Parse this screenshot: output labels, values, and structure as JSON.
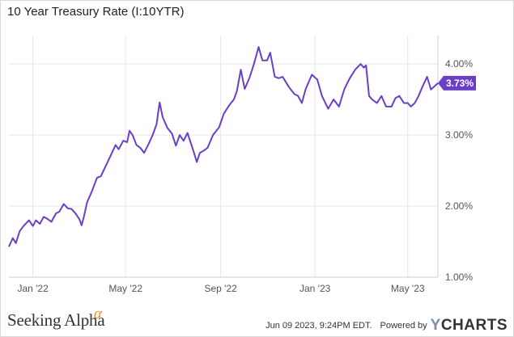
{
  "title": "10 Year Treasury Rate (I:10YTR)",
  "footer": {
    "source": "Seeking Alpha",
    "source_mark": "α",
    "timestamp": "Jun 09 2023, 9:24PM EDT.",
    "powered_by": "Powered by",
    "logo_y": "Y",
    "logo_rest": "CHARTS"
  },
  "colors": {
    "series": "#6a3fc8",
    "grid": "#e6e6e6",
    "axis_text": "#555555",
    "badge_bg": "#6a3fc8",
    "badge_text": "#ffffff"
  },
  "chart_data": {
    "type": "line",
    "title": "10 Year Treasury Rate (I:10YTR)",
    "xlabel": "",
    "ylabel": "",
    "xlim": [
      "2021-12-01",
      "2023-06-09"
    ],
    "ylim": [
      1.0,
      4.4
    ],
    "grid": true,
    "x_ticks": [
      {
        "date": "2022-01-01",
        "label": "Jan '22"
      },
      {
        "date": "2022-05-01",
        "label": "May '22"
      },
      {
        "date": "2022-09-01",
        "label": "Sep '22"
      },
      {
        "date": "2023-01-01",
        "label": "Jan '23"
      },
      {
        "date": "2023-05-01",
        "label": "May '23"
      }
    ],
    "y_ticks": [
      {
        "value": 1.0,
        "label": "1.00%"
      },
      {
        "value": 2.0,
        "label": "2.00%"
      },
      {
        "value": 3.0,
        "label": "3.00%"
      },
      {
        "value": 4.0,
        "label": "4.00%"
      }
    ],
    "last_value_label": "3.73%",
    "series": [
      {
        "points": [
          [
            "2021-12-01",
            1.43
          ],
          [
            "2021-12-06",
            1.55
          ],
          [
            "2021-12-10",
            1.48
          ],
          [
            "2021-12-15",
            1.65
          ],
          [
            "2021-12-20",
            1.72
          ],
          [
            "2021-12-27",
            1.8
          ],
          [
            "2022-01-01",
            1.72
          ],
          [
            "2022-01-05",
            1.8
          ],
          [
            "2022-01-10",
            1.75
          ],
          [
            "2022-01-15",
            1.85
          ],
          [
            "2022-01-20",
            1.82
          ],
          [
            "2022-01-25",
            1.78
          ],
          [
            "2022-01-31",
            1.9
          ],
          [
            "2022-02-04",
            1.92
          ],
          [
            "2022-02-10",
            2.03
          ],
          [
            "2022-02-15",
            1.97
          ],
          [
            "2022-02-20",
            1.96
          ],
          [
            "2022-02-25",
            1.9
          ],
          [
            "2022-03-02",
            1.82
          ],
          [
            "2022-03-05",
            1.73
          ],
          [
            "2022-03-08",
            1.85
          ],
          [
            "2022-03-12",
            2.05
          ],
          [
            "2022-03-18",
            2.2
          ],
          [
            "2022-03-25",
            2.4
          ],
          [
            "2022-03-30",
            2.42
          ],
          [
            "2022-04-05",
            2.56
          ],
          [
            "2022-04-12",
            2.72
          ],
          [
            "2022-04-18",
            2.86
          ],
          [
            "2022-04-22",
            2.8
          ],
          [
            "2022-04-28",
            2.92
          ],
          [
            "2022-05-03",
            2.9
          ],
          [
            "2022-05-06",
            3.06
          ],
          [
            "2022-05-10",
            3.0
          ],
          [
            "2022-05-15",
            2.86
          ],
          [
            "2022-05-20",
            2.82
          ],
          [
            "2022-05-25",
            2.75
          ],
          [
            "2022-05-31",
            2.88
          ],
          [
            "2022-06-05",
            3.0
          ],
          [
            "2022-06-10",
            3.15
          ],
          [
            "2022-06-14",
            3.46
          ],
          [
            "2022-06-18",
            3.25
          ],
          [
            "2022-06-24",
            3.1
          ],
          [
            "2022-06-30",
            3.02
          ],
          [
            "2022-07-05",
            2.85
          ],
          [
            "2022-07-10",
            3.0
          ],
          [
            "2022-07-15",
            2.92
          ],
          [
            "2022-07-20",
            3.03
          ],
          [
            "2022-07-27",
            2.8
          ],
          [
            "2022-08-01",
            2.62
          ],
          [
            "2022-08-05",
            2.75
          ],
          [
            "2022-08-10",
            2.78
          ],
          [
            "2022-08-15",
            2.82
          ],
          [
            "2022-08-22",
            3.0
          ],
          [
            "2022-08-30",
            3.11
          ],
          [
            "2022-09-05",
            3.3
          ],
          [
            "2022-09-12",
            3.42
          ],
          [
            "2022-09-18",
            3.5
          ],
          [
            "2022-09-22",
            3.62
          ],
          [
            "2022-09-27",
            3.92
          ],
          [
            "2022-10-02",
            3.65
          ],
          [
            "2022-10-08",
            3.8
          ],
          [
            "2022-10-14",
            4.0
          ],
          [
            "2022-10-20",
            4.24
          ],
          [
            "2022-10-25",
            4.05
          ],
          [
            "2022-10-31",
            4.05
          ],
          [
            "2022-11-04",
            4.16
          ],
          [
            "2022-11-10",
            3.82
          ],
          [
            "2022-11-15",
            3.8
          ],
          [
            "2022-11-20",
            3.82
          ],
          [
            "2022-11-28",
            3.68
          ],
          [
            "2022-12-05",
            3.58
          ],
          [
            "2022-12-10",
            3.55
          ],
          [
            "2022-12-15",
            3.45
          ],
          [
            "2022-12-20",
            3.65
          ],
          [
            "2022-12-28",
            3.85
          ],
          [
            "2023-01-04",
            3.78
          ],
          [
            "2023-01-10",
            3.55
          ],
          [
            "2023-01-18",
            3.37
          ],
          [
            "2023-01-25",
            3.5
          ],
          [
            "2023-02-01",
            3.4
          ],
          [
            "2023-02-08",
            3.65
          ],
          [
            "2023-02-15",
            3.8
          ],
          [
            "2023-02-22",
            3.92
          ],
          [
            "2023-03-01",
            4.0
          ],
          [
            "2023-03-05",
            3.95
          ],
          [
            "2023-03-08",
            3.98
          ],
          [
            "2023-03-12",
            3.55
          ],
          [
            "2023-03-16",
            3.5
          ],
          [
            "2023-03-22",
            3.45
          ],
          [
            "2023-03-28",
            3.55
          ],
          [
            "2023-04-03",
            3.4
          ],
          [
            "2023-04-10",
            3.4
          ],
          [
            "2023-04-15",
            3.52
          ],
          [
            "2023-04-20",
            3.55
          ],
          [
            "2023-04-26",
            3.45
          ],
          [
            "2023-05-01",
            3.45
          ],
          [
            "2023-05-05",
            3.4
          ],
          [
            "2023-05-10",
            3.45
          ],
          [
            "2023-05-15",
            3.55
          ],
          [
            "2023-05-20",
            3.68
          ],
          [
            "2023-05-26",
            3.82
          ],
          [
            "2023-05-31",
            3.64
          ],
          [
            "2023-06-05",
            3.69
          ],
          [
            "2023-06-09",
            3.73
          ]
        ]
      }
    ]
  }
}
